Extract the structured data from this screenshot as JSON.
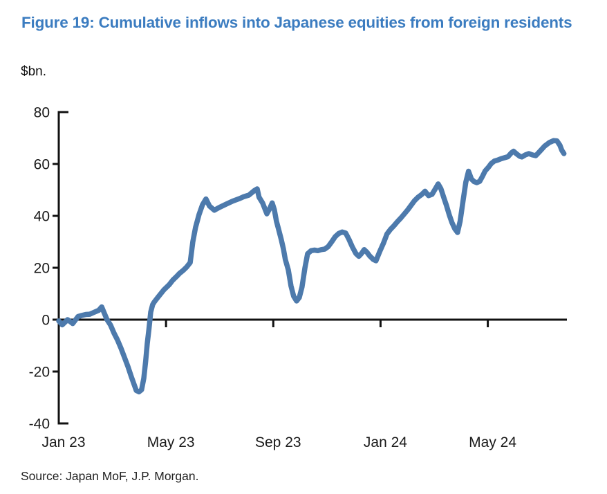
{
  "figure_label": "Figure 19",
  "chart_data": {
    "type": "line",
    "title": "Figure 19: Cumulative inflows into Japanese equities from foreign residents",
    "unit_label": "$bn.",
    "source": "Source: Japan MoF, J.P. Morgan.",
    "xlabel": "",
    "ylabel": "$bn.",
    "x_unit": "months since Jan 2023 (fractional, weekly data)",
    "xlim": [
      0,
      18.95
    ],
    "ylim": [
      -40,
      80
    ],
    "grid": false,
    "legend": "none",
    "line_color": "#4d7aac",
    "axis_color": "#111111",
    "title_color": "#3b7cc0",
    "y_ticks": [
      80,
      60,
      40,
      20,
      0,
      -20,
      -40
    ],
    "x_ticks": [
      {
        "pos": 0,
        "label": "Jan 23"
      },
      {
        "pos": 4,
        "label": "May 23"
      },
      {
        "pos": 8,
        "label": "Sep 23"
      },
      {
        "pos": 12,
        "label": "Jan 24"
      },
      {
        "pos": 16,
        "label": "May 24"
      }
    ],
    "series": [
      {
        "name": "Cumulative inflows into Japanese equities from foreign residents ($bn)",
        "points": [
          [
            0.0,
            -0.5
          ],
          [
            0.13,
            -2.0
          ],
          [
            0.33,
            0.0
          ],
          [
            0.52,
            -1.5
          ],
          [
            0.72,
            1.2
          ],
          [
            0.85,
            1.6
          ],
          [
            1.01,
            2.0
          ],
          [
            1.16,
            2.1
          ],
          [
            1.31,
            2.8
          ],
          [
            1.49,
            3.6
          ],
          [
            1.6,
            4.9
          ],
          [
            1.68,
            2.9
          ],
          [
            1.8,
            0.0
          ],
          [
            1.93,
            -2.1
          ],
          [
            2.06,
            -5.2
          ],
          [
            2.19,
            -7.8
          ],
          [
            2.32,
            -11.0
          ],
          [
            2.45,
            -14.5
          ],
          [
            2.58,
            -18.1
          ],
          [
            2.71,
            -22.1
          ],
          [
            2.89,
            -27.3
          ],
          [
            2.99,
            -27.8
          ],
          [
            3.09,
            -27.0
          ],
          [
            3.17,
            -22.6
          ],
          [
            3.24,
            -16.0
          ],
          [
            3.3,
            -9.2
          ],
          [
            3.36,
            -4.0
          ],
          [
            3.43,
            2.9
          ],
          [
            3.5,
            5.8
          ],
          [
            3.56,
            6.8
          ],
          [
            3.69,
            8.5
          ],
          [
            3.92,
            11.5
          ],
          [
            4.12,
            13.5
          ],
          [
            4.25,
            15.2
          ],
          [
            4.38,
            16.5
          ],
          [
            4.51,
            17.9
          ],
          [
            4.64,
            19.0
          ],
          [
            4.77,
            20.3
          ],
          [
            4.9,
            22.0
          ],
          [
            5.0,
            30.0
          ],
          [
            5.1,
            35.5
          ],
          [
            5.23,
            40.5
          ],
          [
            5.36,
            44.3
          ],
          [
            5.49,
            46.5
          ],
          [
            5.62,
            43.8
          ],
          [
            5.8,
            42.2
          ],
          [
            5.98,
            43.2
          ],
          [
            6.24,
            44.5
          ],
          [
            6.49,
            45.7
          ],
          [
            6.75,
            46.7
          ],
          [
            6.88,
            47.3
          ],
          [
            7.09,
            48.0
          ],
          [
            7.3,
            49.8
          ],
          [
            7.4,
            50.4
          ],
          [
            7.47,
            47.2
          ],
          [
            7.6,
            45.0
          ],
          [
            7.76,
            40.8
          ],
          [
            7.86,
            42.7
          ],
          [
            7.96,
            45.0
          ],
          [
            8.04,
            42.4
          ],
          [
            8.12,
            37.9
          ],
          [
            8.2,
            34.8
          ],
          [
            8.3,
            30.8
          ],
          [
            8.38,
            27.2
          ],
          [
            8.45,
            23.2
          ],
          [
            8.56,
            19.2
          ],
          [
            8.66,
            13.0
          ],
          [
            8.76,
            9.0
          ],
          [
            8.87,
            7.2
          ],
          [
            8.97,
            8.5
          ],
          [
            9.07,
            12.5
          ],
          [
            9.18,
            20.0
          ],
          [
            9.28,
            25.4
          ],
          [
            9.41,
            26.6
          ],
          [
            9.54,
            26.8
          ],
          [
            9.66,
            26.6
          ],
          [
            9.79,
            27.0
          ],
          [
            9.92,
            27.2
          ],
          [
            10.05,
            28.2
          ],
          [
            10.18,
            30.0
          ],
          [
            10.31,
            32.0
          ],
          [
            10.44,
            33.2
          ],
          [
            10.57,
            33.8
          ],
          [
            10.7,
            33.4
          ],
          [
            10.82,
            31.0
          ],
          [
            10.95,
            28.0
          ],
          [
            11.08,
            25.5
          ],
          [
            11.19,
            24.4
          ],
          [
            11.29,
            25.5
          ],
          [
            11.39,
            27.0
          ],
          [
            11.49,
            26.0
          ],
          [
            11.6,
            24.5
          ],
          [
            11.73,
            23.2
          ],
          [
            11.83,
            22.7
          ],
          [
            11.98,
            26.5
          ],
          [
            12.11,
            29.5
          ],
          [
            12.24,
            33.0
          ],
          [
            12.37,
            34.8
          ],
          [
            12.5,
            36.2
          ],
          [
            12.63,
            37.8
          ],
          [
            12.76,
            39.2
          ],
          [
            12.89,
            40.8
          ],
          [
            13.02,
            42.4
          ],
          [
            13.14,
            44.1
          ],
          [
            13.27,
            45.9
          ],
          [
            13.4,
            47.2
          ],
          [
            13.53,
            48.2
          ],
          [
            13.66,
            49.5
          ],
          [
            13.79,
            47.8
          ],
          [
            13.92,
            48.3
          ],
          [
            14.05,
            50.5
          ],
          [
            14.15,
            52.3
          ],
          [
            14.25,
            50.5
          ],
          [
            14.36,
            47.0
          ],
          [
            14.46,
            44.0
          ],
          [
            14.56,
            40.5
          ],
          [
            14.66,
            37.5
          ],
          [
            14.77,
            35.0
          ],
          [
            14.87,
            33.6
          ],
          [
            14.97,
            38.0
          ],
          [
            15.08,
            46.0
          ],
          [
            15.18,
            53.0
          ],
          [
            15.28,
            57.2
          ],
          [
            15.39,
            54.2
          ],
          [
            15.49,
            53.2
          ],
          [
            15.59,
            52.8
          ],
          [
            15.7,
            53.3
          ],
          [
            15.8,
            55.2
          ],
          [
            15.9,
            57.3
          ],
          [
            16.03,
            58.8
          ],
          [
            16.13,
            60.2
          ],
          [
            16.24,
            61.1
          ],
          [
            16.37,
            61.5
          ],
          [
            16.49,
            62.0
          ],
          [
            16.62,
            62.4
          ],
          [
            16.75,
            62.8
          ],
          [
            16.88,
            64.3
          ],
          [
            16.96,
            64.9
          ],
          [
            17.06,
            64.0
          ],
          [
            17.19,
            63.0
          ],
          [
            17.27,
            62.7
          ],
          [
            17.4,
            63.5
          ],
          [
            17.53,
            64.0
          ],
          [
            17.66,
            63.5
          ],
          [
            17.79,
            63.2
          ],
          [
            17.96,
            65.1
          ],
          [
            18.12,
            66.9
          ],
          [
            18.3,
            68.3
          ],
          [
            18.45,
            69.0
          ],
          [
            18.58,
            68.9
          ],
          [
            18.69,
            67.2
          ],
          [
            18.76,
            65.3
          ],
          [
            18.84,
            64.0
          ]
        ]
      }
    ]
  }
}
